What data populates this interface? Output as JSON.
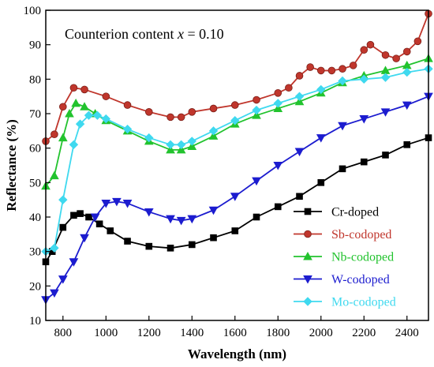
{
  "chart_data": {
    "type": "line",
    "xlabel": "Wavelength (nm)",
    "ylabel": "Reflectance (%)",
    "xlim": [
      720,
      2500
    ],
    "ylim": [
      10,
      100
    ],
    "xticks": [
      800,
      1000,
      1200,
      1400,
      1600,
      1800,
      2000,
      2200,
      2400
    ],
    "yticks": [
      10,
      20,
      30,
      40,
      50,
      60,
      70,
      80,
      90,
      100
    ],
    "grid": false,
    "legend": "bottom-right",
    "annotation": {
      "prefix": "Counterion content ",
      "variable": "x",
      "suffix": " = 0.10"
    },
    "series": [
      {
        "name": "Cr-doped",
        "color": "#000000",
        "marker": "square",
        "x": [
          720,
          750,
          800,
          850,
          880,
          920,
          970,
          1020,
          1100,
          1200,
          1300,
          1400,
          1500,
          1600,
          1700,
          1800,
          1900,
          2000,
          2100,
          2200,
          2300,
          2400,
          2500
        ],
        "y": [
          27,
          30,
          37,
          40.5,
          41,
          40,
          38,
          36,
          33,
          31.5,
          31,
          32,
          34,
          36,
          40,
          43,
          46,
          50,
          54,
          56,
          58,
          61,
          63
        ]
      },
      {
        "name": "Sb-codoped",
        "color": "#c0362c",
        "marker": "circle",
        "x": [
          720,
          760,
          800,
          850,
          900,
          1000,
          1100,
          1200,
          1300,
          1350,
          1400,
          1500,
          1600,
          1700,
          1800,
          1850,
          1900,
          1950,
          2000,
          2050,
          2100,
          2150,
          2200,
          2230,
          2300,
          2350,
          2400,
          2450,
          2500
        ],
        "y": [
          62,
          64,
          72,
          77.5,
          77,
          75,
          72.5,
          70.5,
          69,
          69,
          70.5,
          71.5,
          72.5,
          74,
          76,
          77.5,
          81,
          83.5,
          82.5,
          82.5,
          83,
          84,
          88.5,
          90,
          87,
          86,
          88,
          91,
          99
        ]
      },
      {
        "name": "Nb-codoped",
        "color": "#22c32e",
        "marker": "triangle",
        "x": [
          720,
          760,
          800,
          830,
          860,
          900,
          950,
          1000,
          1100,
          1200,
          1300,
          1350,
          1400,
          1500,
          1600,
          1700,
          1800,
          1900,
          2000,
          2100,
          2200,
          2300,
          2400,
          2500
        ],
        "y": [
          49,
          52,
          63,
          70,
          73,
          72,
          70,
          68,
          65,
          62,
          59.5,
          59.5,
          60.5,
          63.5,
          67,
          69.5,
          71.5,
          73.5,
          76,
          79,
          81,
          82.5,
          84,
          86
        ]
      },
      {
        "name": "W-codoped",
        "color": "#1c1ccf",
        "marker": "triangle-down",
        "x": [
          720,
          760,
          800,
          850,
          900,
          950,
          1000,
          1050,
          1100,
          1200,
          1300,
          1350,
          1400,
          1500,
          1600,
          1700,
          1800,
          1900,
          2000,
          2100,
          2200,
          2300,
          2400,
          2500
        ],
        "y": [
          16,
          18,
          22,
          27,
          34,
          40,
          44,
          44.5,
          44,
          41.5,
          39.5,
          39,
          39.5,
          42,
          46,
          50.5,
          55,
          59,
          63,
          66.5,
          68.5,
          70.5,
          72.5,
          75
        ]
      },
      {
        "name": "Mo-codoped",
        "color": "#3fd9ef",
        "marker": "diamond",
        "x": [
          720,
          760,
          800,
          850,
          880,
          920,
          960,
          1000,
          1100,
          1200,
          1300,
          1350,
          1400,
          1500,
          1600,
          1700,
          1800,
          1900,
          2000,
          2100,
          2200,
          2300,
          2400,
          2500
        ],
        "y": [
          30,
          31,
          45,
          61,
          67,
          69.5,
          69.5,
          68.5,
          65.5,
          63,
          61,
          61,
          62,
          65,
          68,
          71,
          73,
          75,
          77,
          79.5,
          80,
          80.5,
          82,
          83
        ]
      }
    ]
  }
}
